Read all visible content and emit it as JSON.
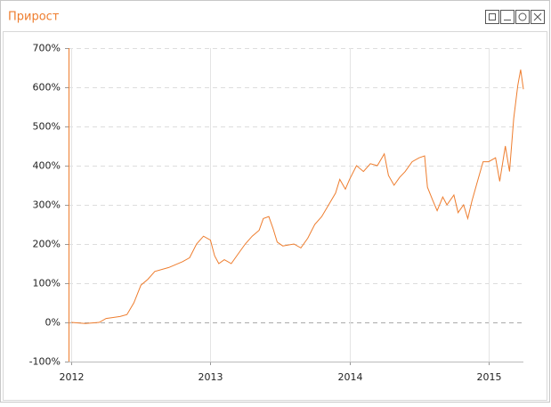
{
  "chart_data": {
    "type": "line",
    "title": "Прирост",
    "x": [
      2012.0,
      2012.1,
      2012.2,
      2012.25,
      2012.35,
      2012.4,
      2012.45,
      2012.5,
      2012.55,
      2012.6,
      2012.7,
      2012.8,
      2012.85,
      2012.9,
      2012.95,
      2013.0,
      2013.03,
      2013.06,
      2013.1,
      2013.15,
      2013.2,
      2013.25,
      2013.3,
      2013.35,
      2013.38,
      2013.42,
      2013.45,
      2013.48,
      2013.52,
      2013.6,
      2013.65,
      2013.7,
      2013.75,
      2013.8,
      2013.85,
      2013.9,
      2013.93,
      2013.97,
      2014.0,
      2014.05,
      2014.1,
      2014.15,
      2014.2,
      2014.25,
      2014.28,
      2014.32,
      2014.36,
      2014.4,
      2014.45,
      2014.5,
      2014.54,
      2014.56,
      2014.6,
      2014.63,
      2014.67,
      2014.7,
      2014.75,
      2014.78,
      2014.82,
      2014.85,
      2014.88,
      2014.92,
      2014.96,
      2015.0,
      2015.05,
      2015.08,
      2015.12,
      2015.15,
      2015.18,
      2015.21,
      2015.23,
      2015.25
    ],
    "series": [
      {
        "color": "#ee7d2e",
        "values": [
          0,
          -3,
          0,
          10,
          15,
          20,
          50,
          95,
          110,
          130,
          140,
          155,
          165,
          200,
          220,
          210,
          170,
          150,
          160,
          150,
          175,
          200,
          220,
          235,
          265,
          270,
          240,
          205,
          195,
          200,
          190,
          215,
          250,
          270,
          300,
          330,
          365,
          340,
          365,
          400,
          385,
          405,
          400,
          430,
          375,
          350,
          370,
          385,
          410,
          420,
          425,
          345,
          310,
          285,
          320,
          300,
          325,
          280,
          300,
          265,
          310,
          360,
          410,
          410,
          420,
          360,
          450,
          385,
          520,
          605,
          645,
          595
        ]
      }
    ],
    "xlim": [
      2011.98,
      2015.25
    ],
    "xticks": [
      2012,
      2013,
      2014,
      2015
    ],
    "ylim": [
      -100,
      700
    ],
    "yticks": [
      {
        "value": -100,
        "label": "-100%"
      },
      {
        "value": 0,
        "label": "0%"
      },
      {
        "value": 100,
        "label": "100%"
      },
      {
        "value": 200,
        "label": "200%"
      },
      {
        "value": 300,
        "label": "300%"
      },
      {
        "value": 400,
        "label": "400%"
      },
      {
        "value": 500,
        "label": "500%"
      },
      {
        "value": 600,
        "label": "600%"
      },
      {
        "value": 700,
        "label": "700%"
      }
    ],
    "grid": true
  }
}
